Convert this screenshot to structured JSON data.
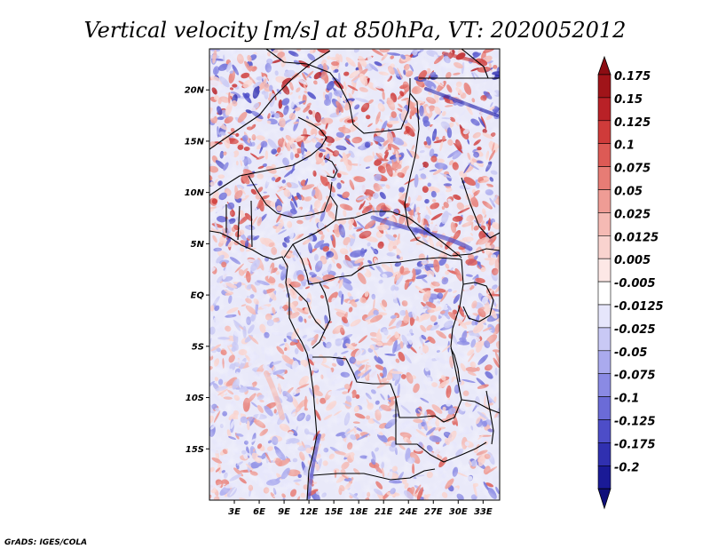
{
  "title": "Vertical velocity [m/s] at 850hPa, VT: 2020052012",
  "credit": "GrADS: IGES/COLA",
  "map": {
    "lon_range": [
      0,
      35
    ],
    "lat_range": [
      -20,
      24
    ],
    "lat_ticks": [
      {
        "value": 20,
        "label": "20N"
      },
      {
        "value": 15,
        "label": "15N"
      },
      {
        "value": 10,
        "label": "10N"
      },
      {
        "value": 5,
        "label": "5N"
      },
      {
        "value": 0,
        "label": "EQ"
      },
      {
        "value": -5,
        "label": "5S"
      },
      {
        "value": -10,
        "label": "10S"
      },
      {
        "value": -15,
        "label": "15S"
      }
    ],
    "lon_ticks": [
      {
        "value": 3,
        "label": "3E"
      },
      {
        "value": 6,
        "label": "6E"
      },
      {
        "value": 9,
        "label": "9E"
      },
      {
        "value": 12,
        "label": "12E"
      },
      {
        "value": 15,
        "label": "15E"
      },
      {
        "value": 18,
        "label": "18E"
      },
      {
        "value": 21,
        "label": "21E"
      },
      {
        "value": 24,
        "label": "24E"
      },
      {
        "value": 27,
        "label": "27E"
      },
      {
        "value": 30,
        "label": "30E"
      },
      {
        "value": 33,
        "label": "33E"
      }
    ]
  },
  "colorbar": {
    "levels": [
      {
        "label": "0.175",
        "color": "#a01419"
      },
      {
        "label": "0.15",
        "color": "#b92127"
      },
      {
        "label": "0.125",
        "color": "#cf3b3a"
      },
      {
        "label": "0.1",
        "color": "#dd5a55"
      },
      {
        "label": "0.075",
        "color": "#e77c75"
      },
      {
        "label": "0.05",
        "color": "#ef9c95"
      },
      {
        "label": "0.025",
        "color": "#f5bab4"
      },
      {
        "label": "0.0125",
        "color": "#f9d3cf"
      },
      {
        "label": "0.005",
        "color": "#fde8e6"
      },
      {
        "label": "-0.005",
        "color": "#ffffff"
      },
      {
        "label": "-0.0125",
        "color": "#e6e6fb"
      },
      {
        "label": "-0.025",
        "color": "#c9c9f5"
      },
      {
        "label": "-0.05",
        "color": "#aaaaee"
      },
      {
        "label": "-0.075",
        "color": "#8a8ae4"
      },
      {
        "label": "-0.1",
        "color": "#6b6bd7"
      },
      {
        "label": "-0.125",
        "color": "#4d4dc8"
      },
      {
        "label": "-0.175",
        "color": "#3030b0"
      },
      {
        "label": "-0.2",
        "color": "#1a1a96"
      }
    ],
    "top_color": "#8c0d13",
    "bottom_color": "#0f0f7a"
  }
}
